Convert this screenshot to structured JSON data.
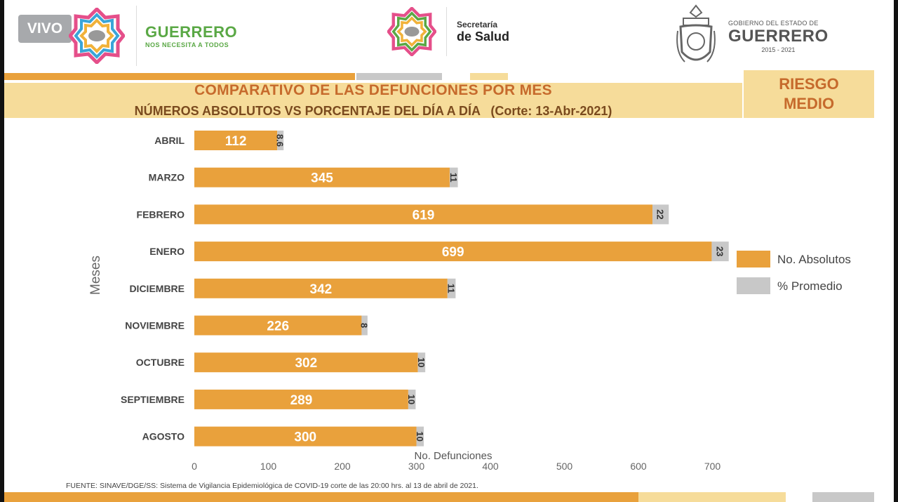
{
  "overlay": {
    "live_badge": "VIVO"
  },
  "header": {
    "guerrero_logo": {
      "name": "GUERRERO",
      "slogan": "NOS NECESITA A TODOS"
    },
    "salud_logo": {
      "line1": "Secretaría",
      "line2": "de Salud"
    },
    "gobierno_logo": {
      "line1": "GOBIERNO DEL ESTADO DE",
      "line2": "GUERRERO",
      "line3": "2015 - 2021"
    }
  },
  "risk_badge": {
    "line1": "RIESGO",
    "line2": "MEDIO"
  },
  "colors": {
    "absolutos": "#e9a13c",
    "promedio": "#c8c8c8",
    "title_orange": "#c66a2c",
    "title_brown": "#7a4a1e",
    "band": "#f6dc9a"
  },
  "chart_data": {
    "type": "bar",
    "orientation": "horizontal",
    "stacked": true,
    "title": "COMPARATIVO DE LAS DEFUNCIONES POR MES",
    "subtitle": "NÚMEROS ABSOLUTOS VS PORCENTAJE DEL DÍA A DÍA   (Corte: 13-Abr-2021)",
    "xlabel": "No. Defunciones",
    "ylabel": "Meses",
    "xlim": [
      0,
      700
    ],
    "xticks": [
      0,
      100,
      200,
      300,
      400,
      500,
      600,
      700
    ],
    "categories": [
      "ABRIL",
      "MARZO",
      "FEBRERO",
      "ENERO",
      "DICIEMBRE",
      "NOVIEMBRE",
      "OCTUBRE",
      "SEPTIEMBRE",
      "AGOSTO"
    ],
    "series": [
      {
        "name": "No. Absolutos",
        "values": [
          112,
          345,
          619,
          699,
          342,
          226,
          302,
          289,
          300
        ],
        "labels": [
          "112",
          "345",
          "619",
          "699",
          "342",
          "226",
          "302",
          "289",
          "300"
        ]
      },
      {
        "name": "% Promedio",
        "values": [
          8.6,
          11,
          22,
          23,
          11,
          8,
          10,
          10,
          10
        ],
        "labels": [
          "8.6",
          "11",
          "22",
          "23",
          "11",
          "8",
          "10",
          "10",
          "10"
        ]
      }
    ],
    "legend_position": "right",
    "grid": false
  },
  "footer": {
    "source": "FUENTE: SINAVE/DGE/SS: Sistema de Vigilancia Epidemiológica de COVID-19 corte de las 20:00 hrs. al 13 de  abril de 2021."
  }
}
